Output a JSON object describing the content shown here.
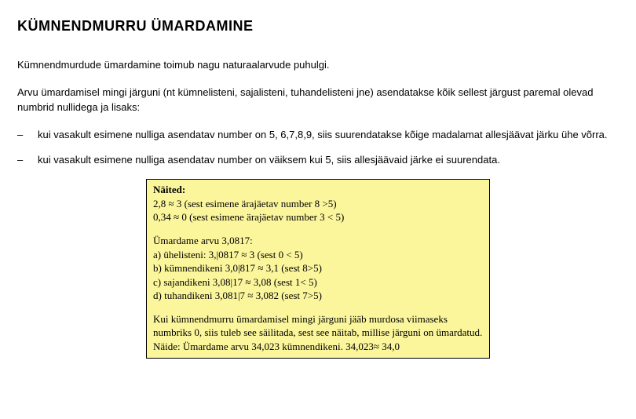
{
  "title": "KÜMNENDMURRU ÜMARDAMINE",
  "intro": "Kümnendmurdude ümardamine toimub nagu naturaalarvude puhulgi.",
  "para2": "Arvu ümardamisel mingi järguni (nt kümnelisteni, sajalisteni, tuhandelisteni jne) asendatakse kõik sellest järgust paremal olevad numbrid nullidega ja lisaks:",
  "dash": "–",
  "bullet1": "kui vasakult esimene nulliga asendatav number on 5, 6,7,8,9, siis suurendatakse kõige madalamat allesjäävat järku ühe võrra.",
  "bullet2": "kui vasakult esimene nulliga asendatav number on väiksem kui 5, siis allesjäävaid järke ei suurendata.",
  "example": {
    "heading": "Näited:",
    "l1": "2,8 ≈ 3 (sest esimene ärajäetav number 8 >5)",
    "l2": "0,34 ≈ 0 (sest esimene ärajäetav number 3 < 5)",
    "l3": "Ümardame arvu 3,0817:",
    "l4": "a) ühelisteni:  3,|0817 ≈ 3 (sest 0 < 5)",
    "l5": "b) kümnendikeni 3,0|817 ≈ 3,1 (sest 8>5)",
    "l6": "c) sajandikeni 3,08|17 ≈ 3,08 (sest 1< 5)",
    "l7": "d) tuhandikeni 3,081|7 ≈ 3,082 (sest 7>5)",
    "l8": "Kui kümnendmurru ümardamisel mingi järguni jääb murdosa viimaseks numbriks 0, siis tuleb see säilitada, sest see näitab, millise järguni on ümardatud.",
    "l9": "Näide: Ümardame arvu 34,023 kümnendikeni.   34,023≈ 34,0"
  },
  "colors": {
    "background": "#ffffff",
    "text": "#000000",
    "box_bg": "#fbf69c",
    "box_border": "#000000"
  }
}
